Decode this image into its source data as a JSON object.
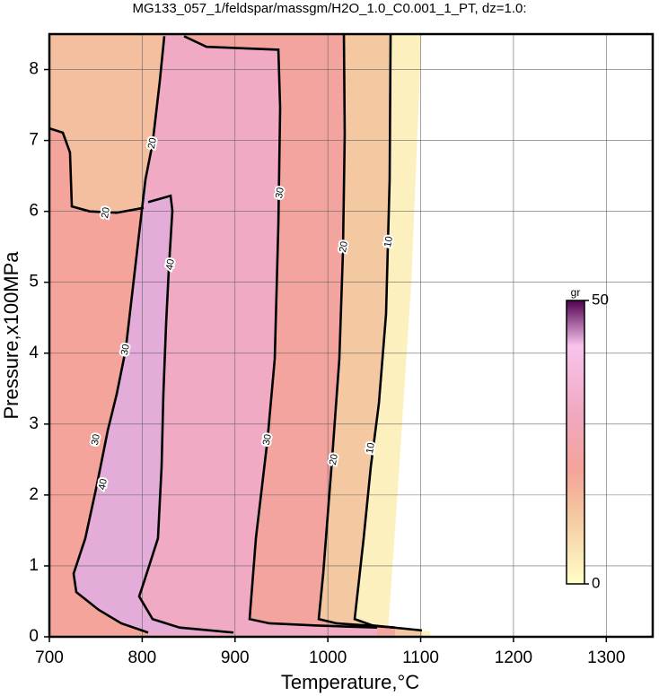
{
  "chart_data": {
    "type": "contour",
    "title": "MG133_057_1/feldspar/massgm/H2O_1.0_C0.001_1_PT, dz=1.0:",
    "x_label": "Temperature,°C",
    "y_label": "Pressure,x100MPa",
    "xlim": [
      700,
      1350
    ],
    "ylim": [
      0,
      8.5
    ],
    "xticks": [
      700,
      800,
      900,
      1000,
      1100,
      1200,
      1300
    ],
    "yticks": [
      0,
      1,
      2,
      3,
      4,
      5,
      6,
      7,
      8
    ],
    "grid": true,
    "colormap": [
      {
        "value": 0,
        "color": "#ffffc8"
      },
      {
        "value": 12,
        "color": "#f4c8a0"
      },
      {
        "value": 20,
        "color": "#f4a49a"
      },
      {
        "value": 30,
        "color": "#f0a8c0"
      },
      {
        "value": 42,
        "color": "#f8c4ec"
      },
      {
        "value": 50,
        "color": "#500050"
      }
    ],
    "colorbar": {
      "label": "gr",
      "lim": [
        0,
        50
      ],
      "ticks": [
        0,
        50
      ]
    },
    "regions": [
      {
        "level": 3,
        "x": [
          700,
          1110,
          1110,
          1065,
          1075,
          1090,
          1101,
          700
        ],
        "y": [
          0,
          0,
          0.08,
          0.12,
          2,
          5,
          8.5,
          8.5
        ]
      },
      {
        "level": 12,
        "x": [
          700,
          1101.4,
          1101.4,
          1048.2,
          1028.9,
          1038.6,
          1046.3,
          1055,
          1062.7,
          1066.6,
          1067.6,
          700
        ],
        "y": [
          0,
          0,
          0.09,
          0.16,
          0.25,
          1.39,
          2.4,
          3.29,
          4.55,
          6.45,
          8.5,
          8.5
        ]
      },
      {
        "level": 21,
        "x": [
          700,
          1072.4,
          1072.4,
          1009.5,
          990.2,
          995,
          1004.7,
          1012.4,
          1016.3,
          1018.2,
          1017.3,
          700
        ],
        "y": [
          0,
          0,
          0.13,
          0.19,
          0.25,
          0.89,
          2.53,
          3.92,
          5.44,
          7.08,
          8.5,
          8.5
        ]
      },
      {
        "level": 31,
        "x": [
          700,
          1053,
          1053,
          985.4,
          937,
          915.7,
          922.5,
          935,
          942.8,
          946.7,
          948.6,
          946.7,
          869.3,
          845.1,
          845.1,
          700
        ],
        "y": [
          0,
          0,
          0.13,
          0.16,
          0.19,
          0.25,
          1.39,
          2.78,
          3.92,
          5.82,
          7.46,
          8.28,
          8.32,
          8.47,
          8.5,
          8.5
        ]
      },
      {
        "level": 20,
        "x": [
          700,
          806.4,
          806.4,
          777.4,
          753.2,
          729,
          726.1,
          738.7,
          751.3,
          762.9,
          772.5,
          782.2,
          790,
          796.7,
          803.5,
          811.2,
          819,
          823.8,
          700
        ],
        "y": [
          0,
          0,
          0.06,
          0.19,
          0.38,
          0.63,
          0.89,
          1.39,
          2.15,
          2.91,
          3.42,
          4.05,
          4.93,
          5.69,
          6.45,
          6.96,
          7.84,
          8.5,
          8.5
        ]
      },
      {
        "level": 14,
        "x": [
          700,
          700,
          714.5,
          722.2,
          724.2,
          743.5,
          772.5,
          801.6,
          803.5,
          811.2,
          819,
          823.8
        ],
        "y": [
          8.5,
          7.17,
          7.11,
          6.83,
          6.07,
          6.0,
          5.98,
          6.05,
          6.45,
          6.96,
          7.84,
          8.5
        ]
      },
      {
        "level": 43,
        "x": [
          806.4,
          830.6,
          832.5,
          828.7,
          825.8,
          822.8,
          820.9,
          817,
          801.6,
          796.7,
          811.2,
          840.3,
          898.3,
          806.4,
          777.4,
          753.2,
          729,
          726.1,
          738.7,
          751.3,
          762.9,
          772.5,
          782.2,
          790,
          796.7,
          803.5
        ],
        "y": [
          6.13,
          6.22,
          6.01,
          5.19,
          4.43,
          3.42,
          2.4,
          1.39,
          0.76,
          0.57,
          0.25,
          0.13,
          0.06,
          0.06,
          0.19,
          0.38,
          0.63,
          0.89,
          1.39,
          2.15,
          2.91,
          3.42,
          4.05,
          4.93,
          5.69,
          6.45
        ]
      }
    ],
    "contours": [
      {
        "level": 10,
        "x": [
          1067.6,
          1066.6,
          1062.7,
          1055,
          1046.3,
          1038.6,
          1028.9,
          1048.2,
          1101.4
        ],
        "y": [
          8.5,
          6.45,
          4.55,
          3.29,
          2.4,
          1.39,
          0.25,
          0.16,
          0.09
        ]
      },
      {
        "level": 20,
        "x": [
          1017.3,
          1018.2,
          1016.3,
          1012.4,
          1004.7,
          995,
          990.2,
          1009.5,
          1072.4
        ],
        "y": [
          8.5,
          7.08,
          5.44,
          3.92,
          2.53,
          0.89,
          0.25,
          0.19,
          0.13
        ]
      },
      {
        "level": 30,
        "x": [
          845.1,
          869.3,
          946.7,
          948.6,
          946.7,
          942.8,
          935,
          922.5,
          915.7,
          937,
          985.4,
          1053
        ],
        "y": [
          8.47,
          8.32,
          8.28,
          7.46,
          5.82,
          3.92,
          2.78,
          1.39,
          0.25,
          0.19,
          0.16,
          0.13
        ]
      },
      {
        "level": 40,
        "x": [
          806.4,
          830.6,
          832.5,
          828.7,
          825.8,
          822.8,
          820.9,
          817,
          801.6,
          796.7,
          811.2,
          840.3,
          898.3
        ],
        "y": [
          6.13,
          6.22,
          6.01,
          5.19,
          4.43,
          3.42,
          2.4,
          1.39,
          0.76,
          0.57,
          0.25,
          0.13,
          0.06
        ]
      },
      {
        "level": 20,
        "x": [
          823.8,
          819,
          811.2,
          803.5,
          796.7
        ],
        "y": [
          8.47,
          7.84,
          6.96,
          6.45,
          5.69
        ]
      },
      {
        "level": 30,
        "x": [
          796.7,
          790,
          782.2,
          772.5,
          762.9,
          751.3,
          738.7,
          726.1,
          729,
          753.2,
          777.4,
          806.4
        ],
        "y": [
          5.69,
          4.93,
          4.05,
          3.42,
          2.91,
          2.15,
          1.39,
          0.89,
          0.63,
          0.38,
          0.19,
          0.06
        ]
      },
      {
        "level": 20,
        "x": [
          700,
          714.5,
          722.2,
          724.2,
          743.5,
          772.5,
          801.6
        ],
        "y": [
          7.17,
          7.11,
          6.83,
          6.07,
          6.0,
          5.98,
          6.05
        ]
      }
    ],
    "contour_labels": [
      {
        "value": 10,
        "x": 1065.7,
        "y": 5.57
      },
      {
        "value": 10,
        "x": 1046.3,
        "y": 2.66
      },
      {
        "value": 20,
        "x": 1017.3,
        "y": 5.5
      },
      {
        "value": 20,
        "x": 1006.6,
        "y": 2.5
      },
      {
        "value": 30,
        "x": 948.6,
        "y": 6.26
      },
      {
        "value": 30,
        "x": 935,
        "y": 2.78
      },
      {
        "value": 40,
        "x": 830.6,
        "y": 5.25
      },
      {
        "value": 20,
        "x": 811.2,
        "y": 6.96
      },
      {
        "value": 30,
        "x": 782.2,
        "y": 4.05
      },
      {
        "value": 30,
        "x": 750.3,
        "y": 2.78
      },
      {
        "value": 40,
        "x": 758,
        "y": 2.15
      },
      {
        "value": 20,
        "x": 761,
        "y": 5.98
      }
    ]
  }
}
